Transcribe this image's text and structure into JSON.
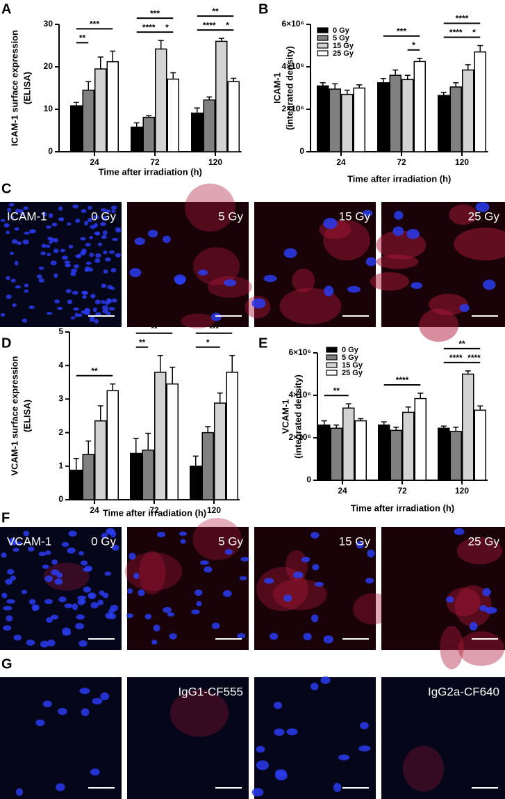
{
  "chart_data": [
    {
      "panel": "A",
      "type": "bar",
      "ylabel": [
        "ICAM-1 surface expression",
        "(ELISA)"
      ],
      "xlabel": "Time after irradiation (h)",
      "categories": [
        "24",
        "72",
        "120"
      ],
      "ylim": [
        0,
        30
      ],
      "yticks": [
        0,
        10,
        20,
        30
      ],
      "series": [
        {
          "color": "#000000",
          "values": [
            10.8,
            5.8,
            9.1
          ],
          "errors": [
            0.8,
            1.0,
            1.2
          ]
        },
        {
          "color": "#808080",
          "values": [
            14.5,
            8.1,
            12.2
          ],
          "errors": [
            2.0,
            0.4,
            0.7
          ]
        },
        {
          "color": "#d3d3d3",
          "values": [
            19.5,
            24.2,
            26.0
          ],
          "errors": [
            2.8,
            2.0,
            0.7
          ]
        },
        {
          "color": "#ffffff",
          "values": [
            21.2,
            17.1,
            16.5
          ],
          "errors": [
            2.5,
            1.5,
            0.8
          ]
        }
      ],
      "brackets": [
        {
          "category": 0,
          "from": 0,
          "to": 3,
          "label": "***"
        },
        {
          "category": 0,
          "from": 0,
          "to": 1,
          "label": "**"
        },
        {
          "category": 1,
          "from": 0,
          "to": 3,
          "label": "***"
        },
        {
          "category": 1,
          "from": 0,
          "to": 2,
          "label": "****"
        },
        {
          "category": 1,
          "from": 2,
          "to": 3,
          "label": "*"
        },
        {
          "category": 2,
          "from": 0,
          "to": 3,
          "label": "**"
        },
        {
          "category": 2,
          "from": 0,
          "to": 2,
          "label": "****"
        },
        {
          "category": 2,
          "from": 2,
          "to": 3,
          "label": "*"
        }
      ]
    },
    {
      "panel": "B",
      "type": "bar",
      "ylabel": [
        "ICAM-1",
        "(integrated density)"
      ],
      "xlabel": "Time after irradiation (h)",
      "categories": [
        "24",
        "72",
        "120"
      ],
      "ylim": [
        0,
        6000000
      ],
      "yticks": [
        0,
        {
          "value": 2000000,
          "label": "2×10⁶"
        },
        {
          "value": 4000000,
          "label": "4×10⁶"
        },
        {
          "value": 6000000,
          "label": "6×10⁶"
        }
      ],
      "legend": "top-left",
      "series": [
        {
          "name": "0 Gy",
          "color": "#000000",
          "values": [
            3100000,
            3250000,
            2650000
          ],
          "errors": [
            150000,
            200000,
            150000
          ]
        },
        {
          "name": "5 Gy",
          "color": "#808080",
          "values": [
            2950000,
            3600000,
            3050000
          ],
          "errors": [
            250000,
            250000,
            200000
          ]
        },
        {
          "name": "15 Gy",
          "color": "#d3d3d3",
          "values": [
            2700000,
            3400000,
            3850000
          ],
          "errors": [
            200000,
            200000,
            250000
          ]
        },
        {
          "name": "25 Gy",
          "color": "#ffffff",
          "values": [
            3000000,
            4250000,
            4700000
          ],
          "errors": [
            150000,
            150000,
            300000
          ]
        }
      ],
      "brackets": [
        {
          "category": 1,
          "from": 0,
          "to": 3,
          "label": "***"
        },
        {
          "category": 1,
          "from": 2,
          "to": 3,
          "label": "*"
        },
        {
          "category": 2,
          "from": 0,
          "to": 3,
          "label": "****"
        },
        {
          "category": 2,
          "from": 2,
          "to": 3,
          "label": "*"
        },
        {
          "category": 2,
          "from": 0,
          "to": 2,
          "label": "****"
        }
      ]
    },
    {
      "panel": "D",
      "type": "bar",
      "ylabel": [
        "VCAM-1 surface expression",
        "(ELISA)"
      ],
      "xlabel": "Time after irradiation (h)",
      "categories": [
        "24",
        "72",
        "120"
      ],
      "ylim": [
        0,
        5
      ],
      "yticks": [
        0,
        1,
        2,
        3,
        4,
        5
      ],
      "series": [
        {
          "color": "#000000",
          "values": [
            0.88,
            1.38,
            1.0
          ],
          "errors": [
            0.35,
            0.45,
            0.3
          ]
        },
        {
          "color": "#808080",
          "values": [
            1.35,
            1.48,
            2.0
          ],
          "errors": [
            0.4,
            0.5,
            0.18
          ]
        },
        {
          "color": "#d3d3d3",
          "values": [
            2.35,
            3.8,
            2.88
          ],
          "errors": [
            0.45,
            0.5,
            0.3
          ]
        },
        {
          "color": "#ffffff",
          "values": [
            3.25,
            3.45,
            3.8
          ],
          "errors": [
            0.2,
            0.5,
            0.5
          ]
        }
      ],
      "brackets": [
        {
          "category": 0,
          "from": 0,
          "to": 3,
          "label": "**"
        },
        {
          "category": 1,
          "from": 0,
          "to": 3,
          "label": "**"
        },
        {
          "category": 1,
          "from": 0,
          "to": 1,
          "label": "**"
        },
        {
          "category": 2,
          "from": 0,
          "to": 3,
          "label": "***"
        },
        {
          "category": 2,
          "from": 0,
          "to": 2,
          "label": "*"
        }
      ]
    },
    {
      "panel": "E",
      "type": "bar",
      "ylabel": [
        "VCAM-1",
        "(integrated density)"
      ],
      "xlabel": "Time after irradiation (h)",
      "categories": [
        "24",
        "72",
        "120"
      ],
      "ylim": [
        0,
        6000000
      ],
      "yticks": [
        0,
        {
          "value": 2000000,
          "label": "2×10⁶"
        },
        {
          "value": 4000000,
          "label": "4×10⁶"
        },
        {
          "value": 6000000,
          "label": "6×10⁶"
        }
      ],
      "legend": "top-left",
      "series": [
        {
          "name": "0 Gy",
          "color": "#000000",
          "values": [
            2600000,
            2600000,
            2450000
          ],
          "errors": [
            200000,
            150000,
            100000
          ]
        },
        {
          "name": "5 Gy",
          "color": "#808080",
          "values": [
            2450000,
            2350000,
            2300000
          ],
          "errors": [
            150000,
            150000,
            200000
          ]
        },
        {
          "name": "15 Gy",
          "color": "#d3d3d3",
          "values": [
            3400000,
            3200000,
            5000000
          ],
          "errors": [
            200000,
            250000,
            150000
          ]
        },
        {
          "name": "25 Gy",
          "color": "#ffffff",
          "values": [
            2800000,
            3850000,
            3300000
          ],
          "errors": [
            100000,
            250000,
            200000
          ]
        }
      ],
      "brackets": [
        {
          "category": 0,
          "from": 0,
          "to": 2,
          "label": "**"
        },
        {
          "category": 1,
          "from": 0,
          "to": 3,
          "label": "****"
        },
        {
          "category": 2,
          "from": 0,
          "to": 3,
          "label": "**"
        },
        {
          "category": 2,
          "from": 0,
          "to": 2,
          "label": "****"
        },
        {
          "category": 2,
          "from": 2,
          "to": 3,
          "label": "****"
        }
      ]
    }
  ],
  "image_rows": [
    {
      "panel": "C",
      "tiles": [
        {
          "tag": "ICAM-1",
          "caption": "0 Gy"
        },
        {
          "caption": "5 Gy"
        },
        {
          "caption": "15 Gy"
        },
        {
          "caption": "25 Gy"
        }
      ]
    },
    {
      "panel": "F",
      "tiles": [
        {
          "tag": "VCAM-1",
          "caption": "0 Gy"
        },
        {
          "caption": "5 Gy"
        },
        {
          "caption": "15 Gy"
        },
        {
          "caption": "25 Gy"
        }
      ]
    },
    {
      "panel": "G",
      "tiles": [
        {},
        {
          "caption": "IgG1-CF555"
        },
        {},
        {
          "caption": "IgG2a-CF640"
        }
      ]
    }
  ]
}
